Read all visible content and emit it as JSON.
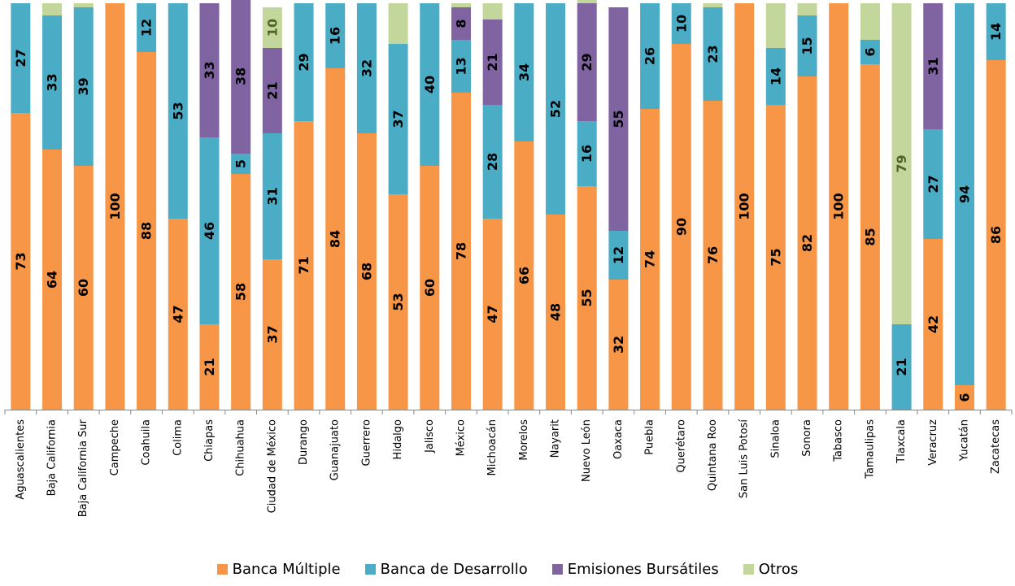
{
  "chart_data": {
    "type": "bar",
    "stacked": true,
    "percent_stacked": true,
    "value_unit": "%",
    "ylim": [
      0,
      100
    ],
    "grid": false,
    "legend_position": "bottom",
    "categories": [
      "Aguascalientes",
      "Baja California",
      "Baja California Sur",
      "Campeche",
      "Coahuila",
      "Colima",
      "Chiapas",
      "Chihuahua",
      "Ciudad de México",
      "Durango",
      "Guanajuato",
      "Guerrero",
      "Hidalgo",
      "Jalisco",
      "México",
      "Michoacán",
      "Morelos",
      "Nayarit",
      "Nuevo León",
      "Oaxaca",
      "Puebla",
      "Querétaro",
      "Quintana Roo",
      "San Luis Potosí",
      "Sinaloa",
      "Sonora",
      "Tabasco",
      "Tamaulipas",
      "Tlaxcala",
      "Veracruz",
      "Yucatán",
      "Zacatecas"
    ],
    "series": [
      {
        "name": "Banca Múltiple",
        "color": "#F79646",
        "values": [
          73,
          64,
          60,
          100,
          88,
          47,
          21,
          58,
          37,
          71,
          84,
          68,
          53,
          60,
          78,
          47,
          66,
          48,
          55,
          32,
          74,
          90,
          76,
          100,
          75,
          82,
          100,
          85,
          0,
          42,
          6,
          86
        ]
      },
      {
        "name": "Banca de Desarrollo",
        "color": "#4BACC6",
        "values": [
          27,
          33,
          39,
          0,
          12,
          53,
          46,
          5,
          31,
          29,
          16,
          32,
          37,
          40,
          13,
          28,
          34,
          52,
          16,
          12,
          26,
          10,
          23,
          0,
          14,
          15,
          0,
          6,
          21,
          27,
          94,
          14
        ]
      },
      {
        "name": "Emisiones Bursátiles",
        "color": "#8064A2",
        "values": [
          0,
          0,
          0,
          0,
          0,
          0,
          33,
          38,
          21,
          0,
          0,
          0,
          0,
          0,
          8,
          21,
          0,
          0,
          29,
          55,
          0,
          0,
          0,
          0,
          0,
          0,
          0,
          0,
          0,
          31,
          0,
          0
        ]
      },
      {
        "name": "Otros",
        "color": "#C3D69B",
        "values": [
          0,
          3,
          1,
          0,
          0,
          0,
          0,
          0,
          10,
          0,
          0,
          0,
          10,
          0,
          1,
          4,
          0,
          0,
          1,
          0,
          0,
          0,
          1,
          0,
          11,
          3,
          0,
          9,
          79,
          0,
          0,
          0
        ]
      }
    ],
    "data_labels": {
      "Banca Múltiple": [
        73,
        64,
        60,
        100,
        88,
        47,
        21,
        58,
        37,
        71,
        84,
        68,
        53,
        60,
        78,
        47,
        66,
        48,
        55,
        32,
        74,
        90,
        76,
        100,
        75,
        82,
        100,
        85,
        null,
        42,
        6,
        86
      ],
      "Banca de Desarrollo": [
        27,
        33,
        39,
        null,
        12,
        53,
        46,
        5,
        31,
        29,
        16,
        32,
        37,
        40,
        13,
        28,
        34,
        52,
        16,
        12,
        26,
        10,
        23,
        null,
        14,
        15,
        null,
        6,
        21,
        27,
        94,
        14
      ],
      "Emisiones Bursátiles": [
        null,
        null,
        null,
        null,
        null,
        null,
        33,
        38,
        21,
        null,
        null,
        null,
        null,
        null,
        8,
        21,
        null,
        null,
        29,
        55,
        null,
        null,
        null,
        null,
        null,
        null,
        null,
        null,
        null,
        31,
        null,
        null
      ],
      "Otros": [
        null,
        null,
        null,
        null,
        null,
        null,
        null,
        null,
        10,
        null,
        null,
        null,
        null,
        null,
        null,
        null,
        null,
        null,
        null,
        null,
        null,
        null,
        null,
        null,
        null,
        null,
        null,
        null,
        79,
        null,
        null,
        null
      ]
    }
  }
}
